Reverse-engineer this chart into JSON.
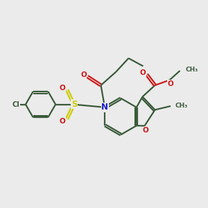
{
  "bg_color": "#ebebeb",
  "bond_color": "#3a5a3a",
  "N_color": "#1a1acc",
  "O_color": "#cc1a1a",
  "S_color": "#cccc00",
  "line_width": 1.6,
  "dbo": 0.055,
  "xlim": [
    0,
    10
  ],
  "ylim": [
    0,
    10
  ]
}
